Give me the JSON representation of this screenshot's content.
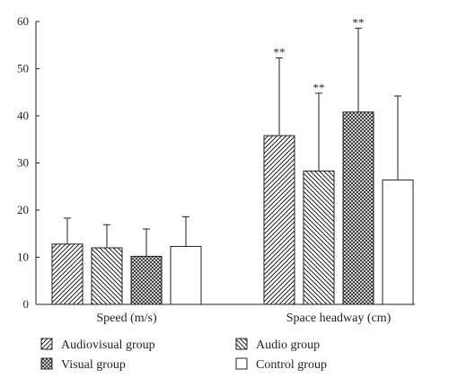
{
  "chart_data": {
    "type": "bar",
    "title": "",
    "xlabel": "",
    "ylabel": "",
    "ylim": [
      0,
      60
    ],
    "yticks": [
      0,
      10,
      20,
      30,
      40,
      50,
      60
    ],
    "grid": false,
    "categories": [
      "Speed (m/s)",
      "Space headway (cm)"
    ],
    "series": [
      {
        "name": "Audiovisual group",
        "pattern": "diagonal-forward",
        "values": [
          12.8,
          35.8
        ],
        "errors": [
          5.5,
          16.5
        ],
        "annotations": [
          "",
          "**"
        ]
      },
      {
        "name": "Audio group",
        "pattern": "diagonal-backward",
        "values": [
          12.0,
          28.3
        ],
        "errors": [
          4.9,
          16.5
        ],
        "annotations": [
          "",
          "**"
        ]
      },
      {
        "name": "Visual group",
        "pattern": "crosshatch",
        "values": [
          10.2,
          40.8
        ],
        "errors": [
          5.8,
          17.8
        ],
        "annotations": [
          "",
          "**"
        ]
      },
      {
        "name": "Control group",
        "pattern": "none",
        "values": [
          12.3,
          26.4
        ],
        "errors": [
          6.3,
          17.8
        ],
        "annotations": [
          "",
          ""
        ]
      }
    ],
    "legend": {
      "placement": "bottom",
      "columns": 2
    },
    "colors": {
      "ink": "#231f20",
      "fill": "#ffffff"
    }
  }
}
